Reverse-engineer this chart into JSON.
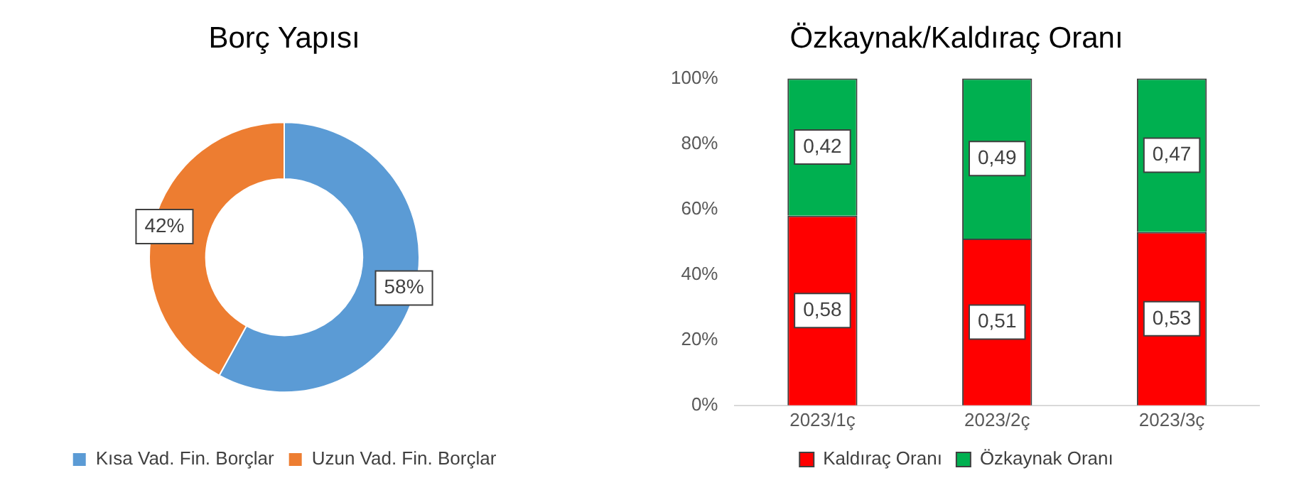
{
  "chart_data": [
    {
      "type": "donut",
      "title": "Borç Yapısı",
      "categories": [
        "Kısa Vad. Fin. Borçlar",
        "Uzun Vad. Fin. Borçlar"
      ],
      "values": [
        58,
        42
      ],
      "colors": [
        "#5b9bd5",
        "#ed7d31"
      ],
      "value_labels": [
        "58%",
        "42%"
      ],
      "legend": "bottom"
    },
    {
      "type": "bar",
      "title": "Özkaynak/Kaldıraç Oranı",
      "categories": [
        "2023/1ç",
        "2023/2ç",
        "2023/3ç"
      ],
      "stacked": true,
      "series": [
        {
          "name": "Kaldıraç Oranı",
          "color": "#ff0000",
          "values": [
            0.58,
            0.51,
            0.53
          ],
          "value_labels": [
            "0,58",
            "0,51",
            "0,53"
          ]
        },
        {
          "name": "Özkaynak Oranı",
          "color": "#00b050",
          "values": [
            0.42,
            0.49,
            0.47
          ],
          "value_labels": [
            "0,42",
            "0,49",
            "0,47"
          ]
        }
      ],
      "ylim": [
        0,
        1
      ],
      "yticks": [
        {
          "value": 0,
          "label": "0%"
        },
        {
          "value": 0.2,
          "label": "20%"
        },
        {
          "value": 0.4,
          "label": "40%"
        },
        {
          "value": 0.6,
          "label": "60%"
        },
        {
          "value": 0.8,
          "label": "80%"
        },
        {
          "value": 1,
          "label": "100%"
        }
      ],
      "grid": false,
      "legend": "bottom"
    }
  ]
}
